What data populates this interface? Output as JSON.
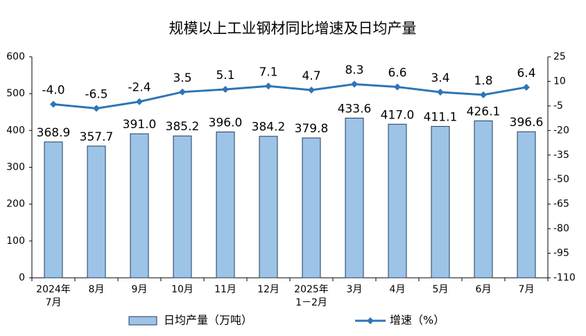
{
  "chart_data": {
    "type": "bar",
    "title": "规模以上工业钢材同比增速及日均产量",
    "categories": [
      "2024年\n7月",
      "8月",
      "9月",
      "10月",
      "11月",
      "12月",
      "2025年\n1－2月",
      "3月",
      "4月",
      "5月",
      "6月",
      "7月"
    ],
    "series": [
      {
        "name": "日均产量（万吨）",
        "type": "bar",
        "color": "#9dc3e6",
        "values": [
          368.9,
          357.7,
          391.0,
          385.2,
          396.0,
          384.2,
          379.8,
          433.6,
          417.0,
          411.1,
          426.1,
          396.6
        ],
        "value_labels": [
          "368.9",
          "357.7",
          "391.0",
          "385.2",
          "396.0",
          "384.2",
          "379.8",
          "433.6",
          "417.0",
          "411.1",
          "426.1",
          "396.6"
        ]
      },
      {
        "name": "增速（%）",
        "type": "line",
        "axis": "y2",
        "color": "#2e75b6",
        "values": [
          -4.0,
          -6.5,
          -2.4,
          3.5,
          5.1,
          7.1,
          4.7,
          8.3,
          6.6,
          3.4,
          1.8,
          6.4
        ],
        "value_labels": [
          "-4.0",
          "-6.5",
          "-2.4",
          "3.5",
          "5.1",
          "7.1",
          "4.7",
          "8.3",
          "6.6",
          "3.4",
          "1.8",
          "6.4"
        ]
      }
    ],
    "ylim": [
      0,
      600
    ],
    "yticks": [
      0,
      100,
      200,
      300,
      400,
      500,
      600
    ],
    "y2lim": [
      -110,
      25
    ],
    "y2ticks": [
      -110,
      -95,
      -80,
      -65,
      -50,
      -35,
      -20,
      -5,
      10,
      25
    ],
    "legend": "bottom"
  }
}
